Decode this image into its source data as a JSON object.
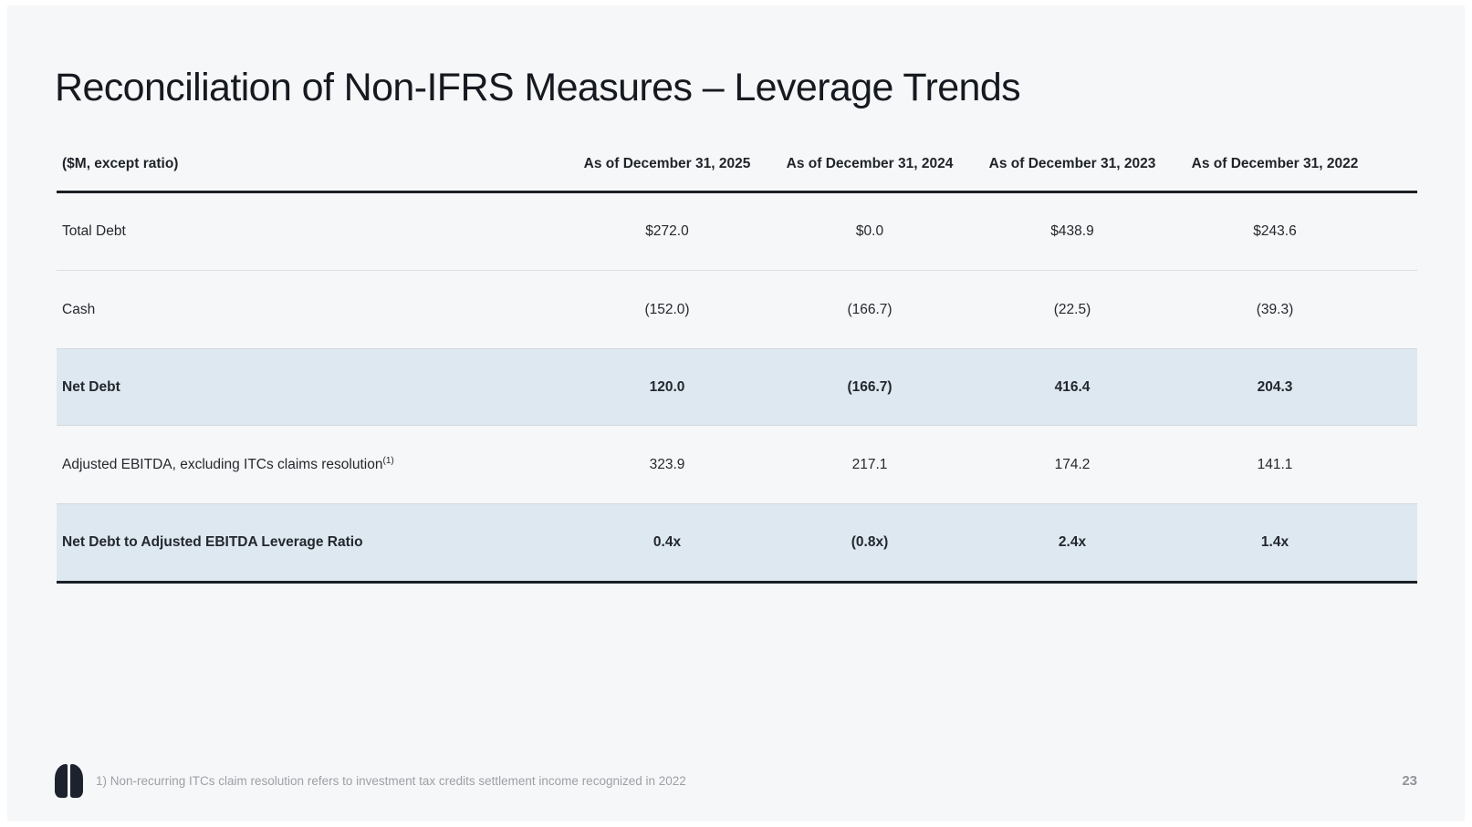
{
  "slide": {
    "title": "Reconciliation of Non-IFRS Measures – Leverage Trends"
  },
  "table": {
    "caption": "($M, except ratio)",
    "columns": [
      "As of December 31, 2025",
      "As of December 31, 2024",
      "As of December 31, 2023",
      "As of December 31, 2022"
    ],
    "rows": [
      {
        "label": "Total Debt",
        "values": [
          "$272.0",
          "$0.0",
          "$438.9",
          "$243.6"
        ],
        "highlight": false
      },
      {
        "label": "Cash",
        "values": [
          "(152.0)",
          "(166.7)",
          "(22.5)",
          "(39.3)"
        ],
        "highlight": false
      },
      {
        "label": "Net Debt",
        "values": [
          "120.0",
          "(166.7)",
          "416.4",
          "204.3"
        ],
        "highlight": true
      },
      {
        "label": "Adjusted EBITDA, excluding ITCs claims resolution",
        "sup": "(1)",
        "values": [
          "323.9",
          "217.1",
          "174.2",
          "141.1"
        ],
        "highlight": false
      },
      {
        "label": "Net Debt to Adjusted EBITDA Leverage Ratio",
        "values": [
          "0.4x",
          "(0.8x)",
          "2.4x",
          "1.4x"
        ],
        "highlight": true
      }
    ]
  },
  "footer": {
    "footnote": "1) Non-recurring ITCs claim resolution refers to investment tax credits settlement income recognized in 2022",
    "page_number": "23"
  },
  "icons": {
    "logo": "lungs-logo-icon"
  },
  "colors": {
    "background": "#f6f7f8",
    "highlight_row": "#dee8f0",
    "header_line": "#1b2026",
    "text_dark": "#24282e",
    "footnote_gray": "#9ca1a6"
  }
}
